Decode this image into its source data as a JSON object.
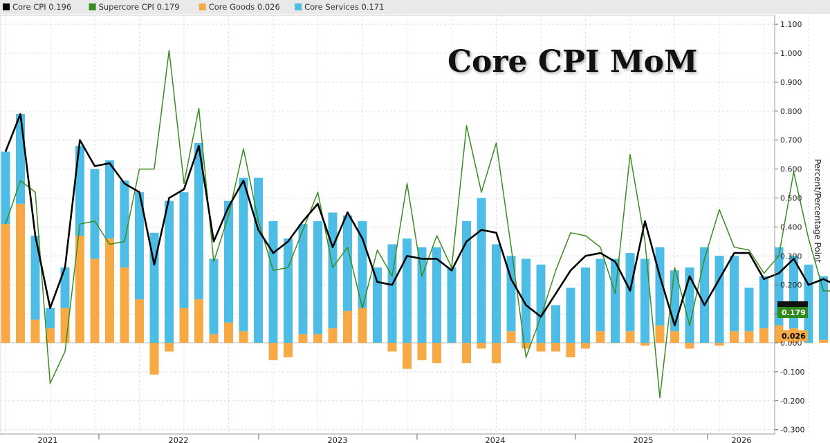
{
  "legend": [
    {
      "label": "Core CPI 0.196",
      "color": "#000000"
    },
    {
      "label": "Supercore CPI 0.179",
      "color": "#3a8c1e"
    },
    {
      "label": "Core Goods 0.026",
      "color": "#f7a945"
    },
    {
      "label": "Core Services 0.171",
      "color": "#4dbde6"
    }
  ],
  "badges": {
    "supercore": "0.179",
    "goods": "0.026"
  },
  "chart_data": {
    "type": "bar",
    "title": "Core CPI MoM",
    "ylabel": "Percent/Percentage Point",
    "xlabel": "",
    "ylim": [
      -0.3,
      1.1
    ],
    "yticks": [
      "1.100",
      "1.000",
      "0.900",
      "0.800",
      "0.700",
      "0.600",
      "0.500",
      "0.400",
      "0.300",
      "0.200",
      "0.100",
      "0.000",
      "-0.100",
      "-0.200",
      "-0.300"
    ],
    "x_labels": [
      "2021",
      "2022",
      "2023",
      "2024",
      "2025",
      "2026"
    ],
    "x": [
      "2020-12",
      "2021-01",
      "2021-02",
      "2021-03",
      "2021-04",
      "2021-05",
      "2021-06",
      "2021-07",
      "2021-08",
      "2021-09",
      "2021-10",
      "2021-11",
      "2021-12",
      "2022-01",
      "2022-02",
      "2022-03",
      "2022-04",
      "2022-05",
      "2022-06",
      "2022-07",
      "2022-08",
      "2022-09",
      "2022-10",
      "2022-11",
      "2022-12",
      "2023-01",
      "2023-02",
      "2023-03",
      "2023-04",
      "2023-05",
      "2023-06",
      "2023-07",
      "2023-08",
      "2023-09",
      "2023-10",
      "2023-11",
      "2023-12",
      "2024-01",
      "2024-02",
      "2024-03",
      "2024-04",
      "2024-05",
      "2024-06",
      "2024-07",
      "2024-08",
      "2024-09",
      "2024-10",
      "2024-11",
      "2024-12",
      "2025-01",
      "2025-02",
      "2025-03",
      "2025-04",
      "2025-05",
      "2025-06",
      "2025-07",
      "2025-08",
      "2025-09",
      "2025-10",
      "2025-11",
      "2025-12",
      "2026-01"
    ],
    "series": [
      {
        "name": "Core Goods",
        "type": "bar",
        "color": "#f7a945",
        "values": [
          0.41,
          0.48,
          0.08,
          0.05,
          0.12,
          0.37,
          0.29,
          0.36,
          0.26,
          0.15,
          -0.11,
          -0.03,
          0.12,
          0.15,
          0.03,
          0.07,
          0.04,
          0.0,
          -0.06,
          -0.05,
          0.03,
          0.03,
          0.05,
          0.11,
          0.12,
          0.0,
          -0.03,
          -0.09,
          -0.06,
          -0.07,
          0.0,
          -0.07,
          -0.02,
          -0.07,
          0.04,
          -0.02,
          -0.03,
          -0.03,
          -0.05,
          -0.02,
          0.04,
          0.0,
          0.04,
          -0.01,
          0.06,
          0.04,
          -0.02,
          0.0,
          -0.01,
          0.04,
          0.04,
          0.05,
          0.06,
          0.05,
          0.0,
          0.01,
          0.0,
          0.01,
          0.02,
          0.03,
          0.02,
          0.026
        ]
      },
      {
        "name": "Core Services",
        "type": "bar",
        "color": "#4dbde6",
        "values": [
          0.25,
          0.31,
          0.29,
          0.07,
          0.14,
          0.31,
          0.31,
          0.27,
          0.3,
          0.37,
          0.38,
          0.49,
          0.4,
          0.54,
          0.26,
          0.42,
          0.53,
          0.57,
          0.42,
          0.36,
          0.38,
          0.39,
          0.4,
          0.33,
          0.3,
          0.26,
          0.34,
          0.36,
          0.33,
          0.33,
          0.26,
          0.42,
          0.5,
          0.34,
          0.26,
          0.29,
          0.27,
          0.13,
          0.19,
          0.26,
          0.25,
          0.29,
          0.27,
          0.29,
          0.27,
          0.21,
          0.26,
          0.33,
          0.3,
          0.26,
          0.15,
          0.18,
          0.27,
          0.25,
          0.27,
          0.22,
          0.25,
          0.29,
          0.19,
          0.22,
          0.17,
          0.171
        ]
      },
      {
        "name": "Core CPI",
        "type": "line",
        "color": "#000000",
        "values": [
          0.66,
          0.79,
          0.37,
          0.12,
          0.26,
          0.7,
          0.61,
          0.62,
          0.55,
          0.52,
          0.27,
          0.5,
          0.53,
          0.68,
          0.35,
          0.47,
          0.56,
          0.39,
          0.31,
          0.35,
          0.42,
          0.48,
          0.33,
          0.45,
          0.36,
          0.21,
          0.2,
          0.3,
          0.29,
          0.29,
          0.25,
          0.35,
          0.39,
          0.38,
          0.22,
          0.13,
          0.09,
          0.17,
          0.25,
          0.3,
          0.31,
          0.28,
          0.18,
          0.42,
          0.23,
          0.06,
          0.23,
          0.13,
          0.22,
          0.31,
          0.31,
          0.22,
          0.24,
          0.29,
          0.2,
          0.22,
          0.196,
          0.196,
          0.196,
          0.196,
          0.196,
          0.196
        ]
      },
      {
        "name": "Supercore CPI",
        "type": "line",
        "color": "#3a8c1e",
        "values": [
          0.41,
          0.56,
          0.52,
          -0.14,
          -0.03,
          0.41,
          0.42,
          0.34,
          0.35,
          0.6,
          0.6,
          1.01,
          0.55,
          0.81,
          0.28,
          0.44,
          0.67,
          0.42,
          0.25,
          0.26,
          0.39,
          0.52,
          0.26,
          0.33,
          0.12,
          0.32,
          0.23,
          0.55,
          0.23,
          0.37,
          0.26,
          0.75,
          0.52,
          0.69,
          0.33,
          -0.05,
          0.09,
          0.25,
          0.38,
          0.37,
          0.33,
          0.17,
          0.65,
          0.35,
          -0.19,
          0.26,
          0.06,
          0.29,
          0.46,
          0.33,
          0.32,
          0.24,
          0.3,
          0.59,
          0.36,
          0.179,
          0.179,
          0.179,
          0.179,
          0.179,
          0.179,
          0.179
        ]
      }
    ]
  }
}
